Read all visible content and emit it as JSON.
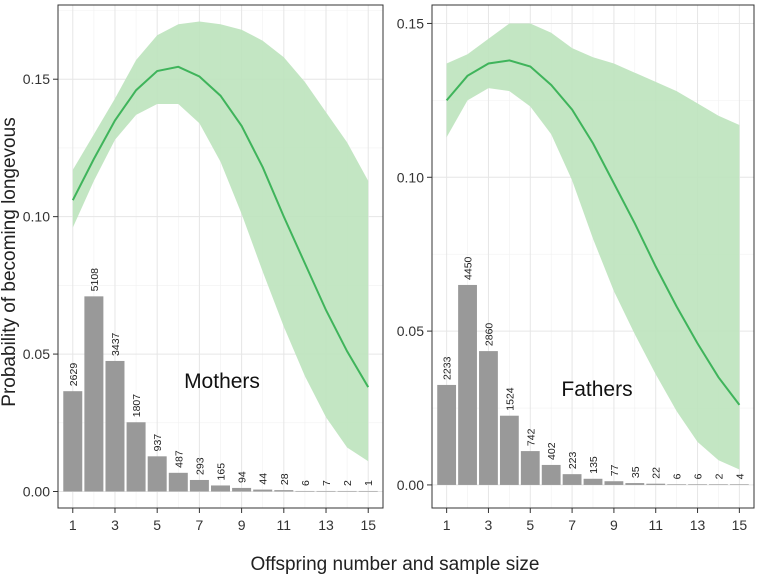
{
  "figure": {
    "ylabel": "Probability of becoming longevous",
    "xlabel": "Offspring number and sample size"
  },
  "chart_data": [
    {
      "type": "line",
      "title": "Mothers",
      "x": [
        1,
        2,
        3,
        4,
        5,
        6,
        7,
        8,
        9,
        10,
        11,
        12,
        13,
        14,
        15
      ],
      "line": [
        0.106,
        0.121,
        0.135,
        0.146,
        0.153,
        0.1545,
        0.151,
        0.144,
        0.133,
        0.118,
        0.1,
        0.083,
        0.066,
        0.051,
        0.038
      ],
      "ci_upper": [
        0.117,
        0.13,
        0.143,
        0.157,
        0.166,
        0.17,
        0.171,
        0.17,
        0.168,
        0.164,
        0.158,
        0.149,
        0.138,
        0.127,
        0.113
      ],
      "ci_lower": [
        0.096,
        0.113,
        0.128,
        0.137,
        0.141,
        0.141,
        0.134,
        0.12,
        0.101,
        0.08,
        0.06,
        0.042,
        0.027,
        0.016,
        0.011
      ],
      "bar_values": [
        0.0365,
        0.071,
        0.0475,
        0.0252,
        0.0128,
        0.0068,
        0.0042,
        0.0022,
        0.0013,
        0.0007,
        0.0005,
        0.0002,
        0.0002,
        0.0002,
        0.0002
      ],
      "bar_labels": [
        "2629",
        "5108",
        "3437",
        "1807",
        "937",
        "487",
        "293",
        "165",
        "94",
        "44",
        "28",
        "6",
        "7",
        "2",
        "1"
      ],
      "ylim": [
        -0.006,
        0.177
      ],
      "yticks": [
        0.0,
        0.05,
        0.1,
        0.15
      ],
      "ytick_labels": [
        "0.00",
        "0.05",
        "0.10",
        "0.15"
      ],
      "xlim": [
        0.3,
        15.7
      ],
      "xticks": [
        1,
        3,
        5,
        7,
        9,
        11,
        13,
        15
      ],
      "xtick_labels": [
        "1",
        "3",
        "5",
        "7",
        "9",
        "11",
        "13",
        "15"
      ],
      "colors": {
        "line": "#3fb45b",
        "ribbon": "#bde3bd",
        "bar": "#999999"
      }
    },
    {
      "type": "line",
      "title": "Fathers",
      "x": [
        1,
        2,
        3,
        4,
        5,
        6,
        7,
        8,
        9,
        10,
        11,
        12,
        13,
        14,
        15
      ],
      "line": [
        0.125,
        0.133,
        0.137,
        0.138,
        0.136,
        0.13,
        0.122,
        0.111,
        0.098,
        0.085,
        0.071,
        0.058,
        0.046,
        0.035,
        0.026
      ],
      "ci_upper": [
        0.137,
        0.14,
        0.145,
        0.15,
        0.15,
        0.147,
        0.142,
        0.139,
        0.137,
        0.134,
        0.131,
        0.128,
        0.124,
        0.12,
        0.117
      ],
      "ci_lower": [
        0.113,
        0.125,
        0.129,
        0.128,
        0.123,
        0.114,
        0.099,
        0.08,
        0.063,
        0.049,
        0.036,
        0.024,
        0.014,
        0.008,
        0.005
      ],
      "bar_values": [
        0.0325,
        0.065,
        0.0435,
        0.0225,
        0.011,
        0.0065,
        0.0035,
        0.002,
        0.0012,
        0.0006,
        0.0004,
        0.0002,
        0.0002,
        0.0002,
        0.0002
      ],
      "bar_labels": [
        "2233",
        "4450",
        "2860",
        "1524",
        "742",
        "402",
        "223",
        "135",
        "77",
        "35",
        "22",
        "6",
        "6",
        "2",
        "4"
      ],
      "ylim": [
        -0.0075,
        0.156
      ],
      "yticks": [
        0.0,
        0.05,
        0.1,
        0.15
      ],
      "ytick_labels": [
        "0.00",
        "0.05",
        "0.10",
        "0.15"
      ],
      "xlim": [
        0.3,
        15.7
      ],
      "xticks": [
        1,
        3,
        5,
        7,
        9,
        11,
        13,
        15
      ],
      "xtick_labels": [
        "1",
        "3",
        "5",
        "7",
        "9",
        "11",
        "13",
        "15"
      ],
      "colors": {
        "line": "#3fb45b",
        "ribbon": "#bde3bd",
        "bar": "#999999"
      }
    }
  ]
}
